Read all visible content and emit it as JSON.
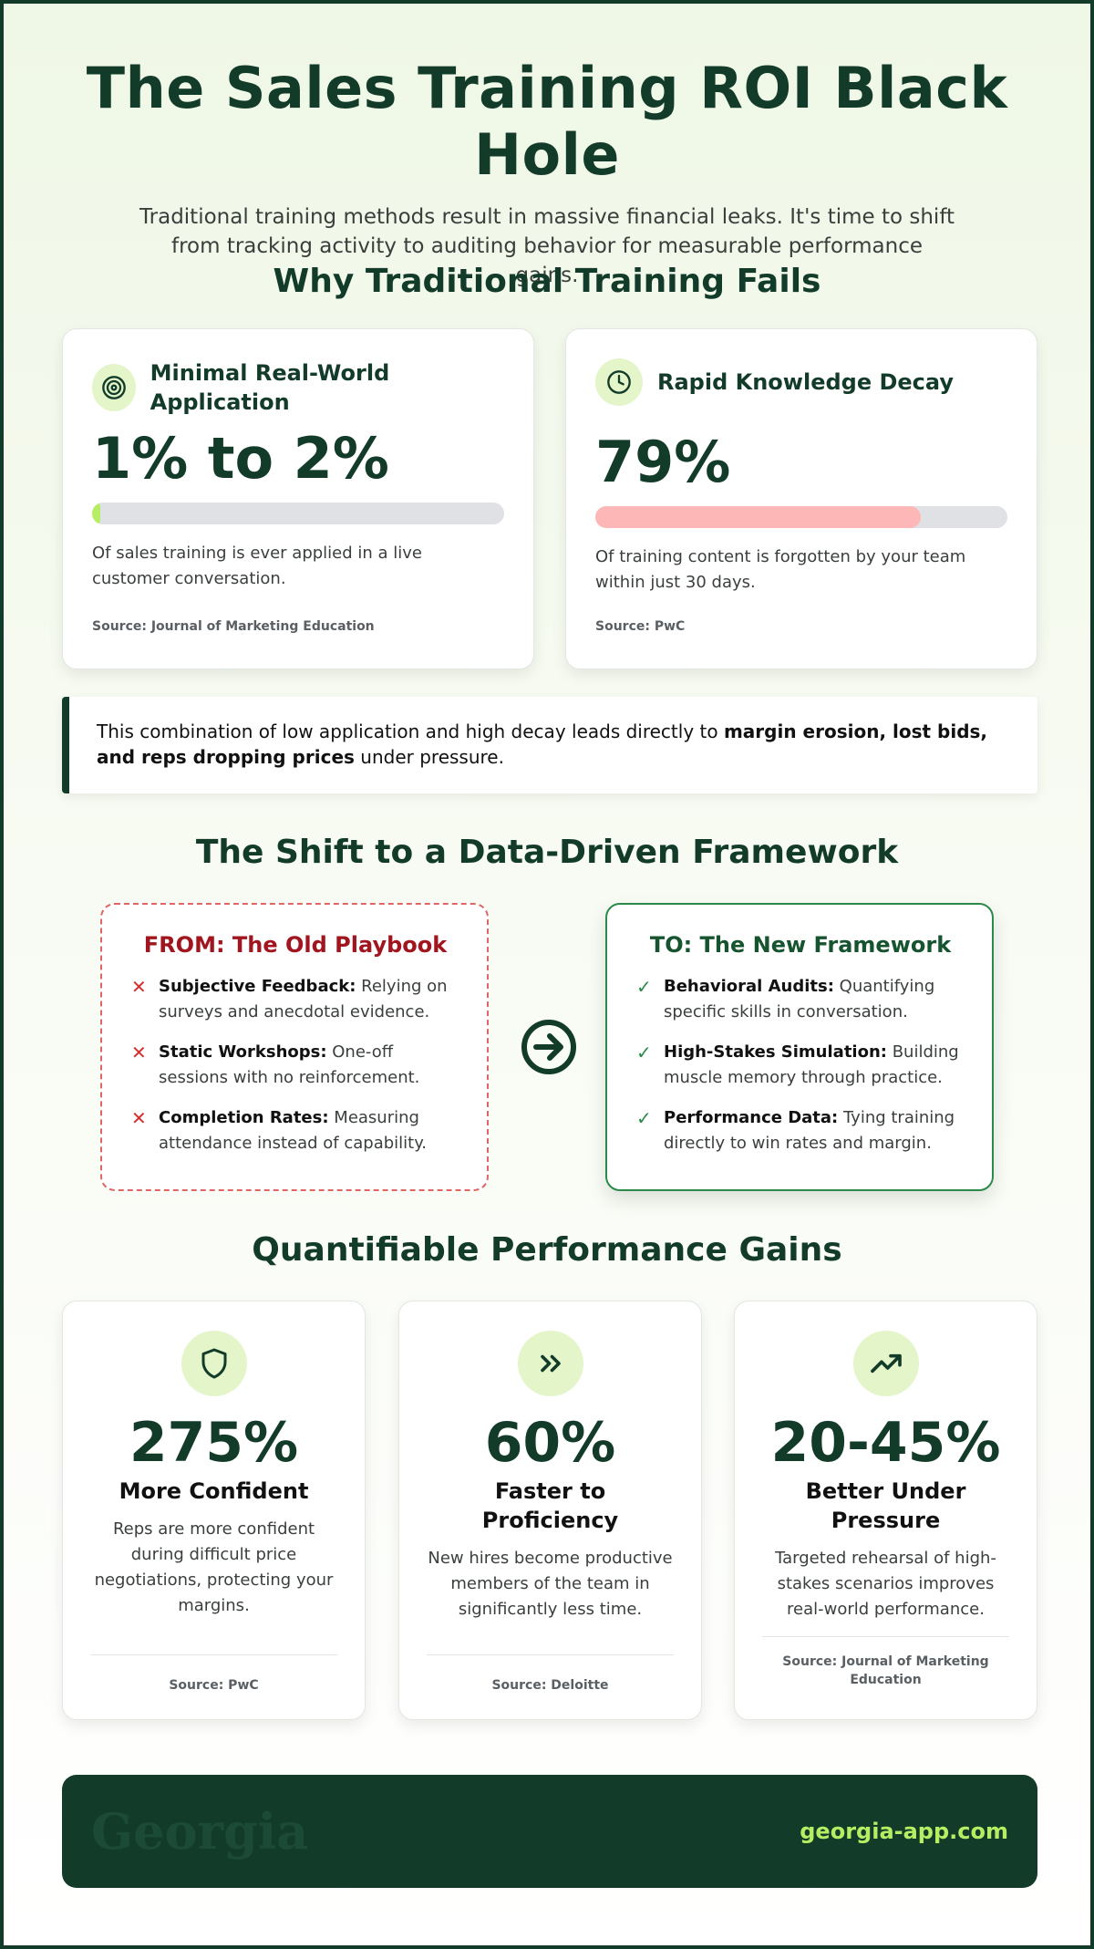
{
  "header": {
    "title": "The Sales Training ROI Black Hole",
    "subtitle": "Traditional training methods result in massive financial leaks. It's time to shift from tracking activity to auditing behavior for measurable performance gains."
  },
  "fails": {
    "title": "Why Traditional Training Fails",
    "cards": [
      {
        "icon": "target-icon",
        "heading": "Minimal Real-World Application",
        "stat": "1% to 2%",
        "bar_fraction": 0.02,
        "bar_color": "#b6ee63",
        "description": "Of sales training is ever applied in a live customer conversation.",
        "source": "Source: Journal of Marketing Education"
      },
      {
        "icon": "clock-icon",
        "heading": "Rapid Knowledge Decay",
        "stat": "79%",
        "bar_fraction": 0.79,
        "bar_color": "#fdb7b7",
        "description": "Of training content is forgotten by your team within just 30 days.",
        "source": "Source: PwC"
      }
    ],
    "callout": {
      "prefix": "This combination of low application and high decay leads directly to ",
      "emphasis": "margin erosion, lost bids, and reps dropping prices",
      "suffix": " under pressure."
    }
  },
  "shift": {
    "title": "The Shift to a Data-Driven Framework",
    "from": {
      "title": "FROM: The Old Playbook",
      "mark": "✕",
      "items": [
        {
          "label": "Subjective Feedback:",
          "text": " Relying on surveys and anecdotal evidence."
        },
        {
          "label": "Static Workshops:",
          "text": " One-off sessions with no reinforcement."
        },
        {
          "label": "Completion Rates:",
          "text": " Measuring attendance instead of capability."
        }
      ]
    },
    "to": {
      "title": "TO: The New Framework",
      "mark": "✓",
      "items": [
        {
          "label": "Behavioral Audits:",
          "text": " Quantifying specific skills in conversation."
        },
        {
          "label": "High-Stakes Simulation:",
          "text": " Building muscle memory through practice."
        },
        {
          "label": "Performance Data:",
          "text": " Tying training directly to win rates and margin."
        }
      ]
    }
  },
  "gains": {
    "title": "Quantifiable Performance Gains",
    "cards": [
      {
        "icon": "shield-icon",
        "stat": "275%",
        "heading": "More Confident",
        "description": "Reps are more confident during difficult price negotiations, protecting your margins.",
        "source": "Source: PwC"
      },
      {
        "icon": "double-chevron-right-icon",
        "stat": "60%",
        "heading": "Faster to Proficiency",
        "description": "New hires become productive members of the team in significantly less time.",
        "source": "Source: Deloitte"
      },
      {
        "icon": "trending-up-icon",
        "stat": "20-45%",
        "heading": "Better Under Pressure",
        "description": "Targeted rehearsal of high-stakes scenarios improves real-world performance.",
        "source": "Source: Journal of Marketing Education"
      }
    ]
  },
  "footer": {
    "logo": "Georgia",
    "url": "georgia-app.com"
  },
  "colors": {
    "brand_dark": "#133b2a",
    "accent_lime": "#b6ee63",
    "icon_bg": "#e3f5c9",
    "negative_red": "#a1151f",
    "positive_green": "#2a8a4a"
  }
}
